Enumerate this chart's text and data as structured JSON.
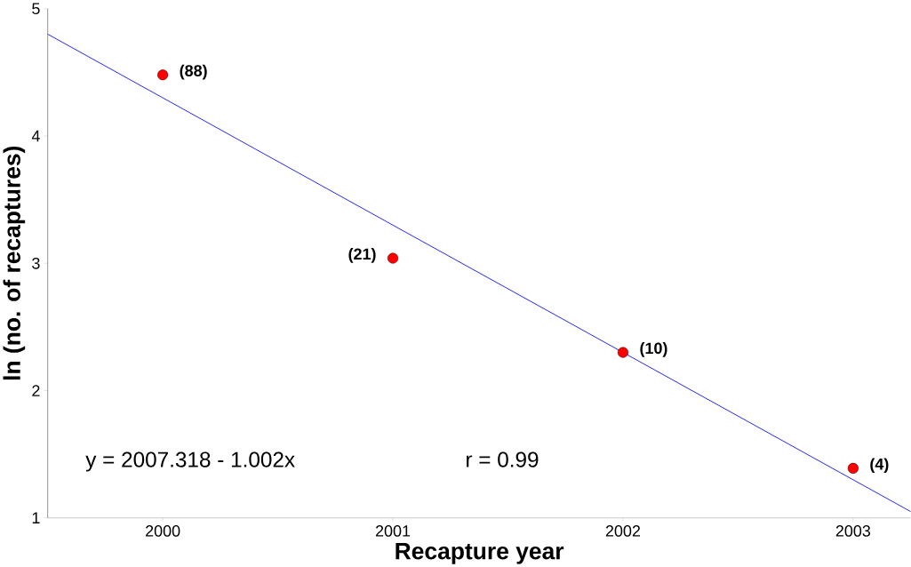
{
  "chart_data": {
    "type": "scatter",
    "xlabel": "Recapture year",
    "ylabel": "ln (no. of recaptures)",
    "series": [
      {
        "color": "#ff0000",
        "marker": "circle",
        "x": [
          2000,
          2001,
          2002,
          2003
        ],
        "values": [
          4.48,
          3.04,
          2.3,
          1.39
        ]
      },
      {
        "type": "line",
        "color": "#0000ff",
        "marker": "none",
        "line_style": "solid",
        "x": [
          1999.5,
          2003.25
        ],
        "values": [
          4.8,
          1.05
        ]
      }
    ],
    "annotations": [
      {
        "text": "(88)",
        "x": 2000,
        "y": 4.48
      },
      {
        "text": "(21)",
        "x": 2001,
        "y": 3.04
      },
      {
        "text": "(10)",
        "x": 2002,
        "y": 2.3
      },
      {
        "text": "(4)",
        "x": 2003,
        "y": 1.39
      },
      "y = 2007.318 - 1.002x",
      "r = 0.99"
    ],
    "xlim": [
      1999.5,
      2003.25
    ],
    "ylim": [
      1,
      5
    ],
    "xticks": [
      2000,
      2001,
      2002,
      2003
    ],
    "yticks": [
      1,
      2,
      3,
      4,
      5
    ],
    "grid": false
  }
}
